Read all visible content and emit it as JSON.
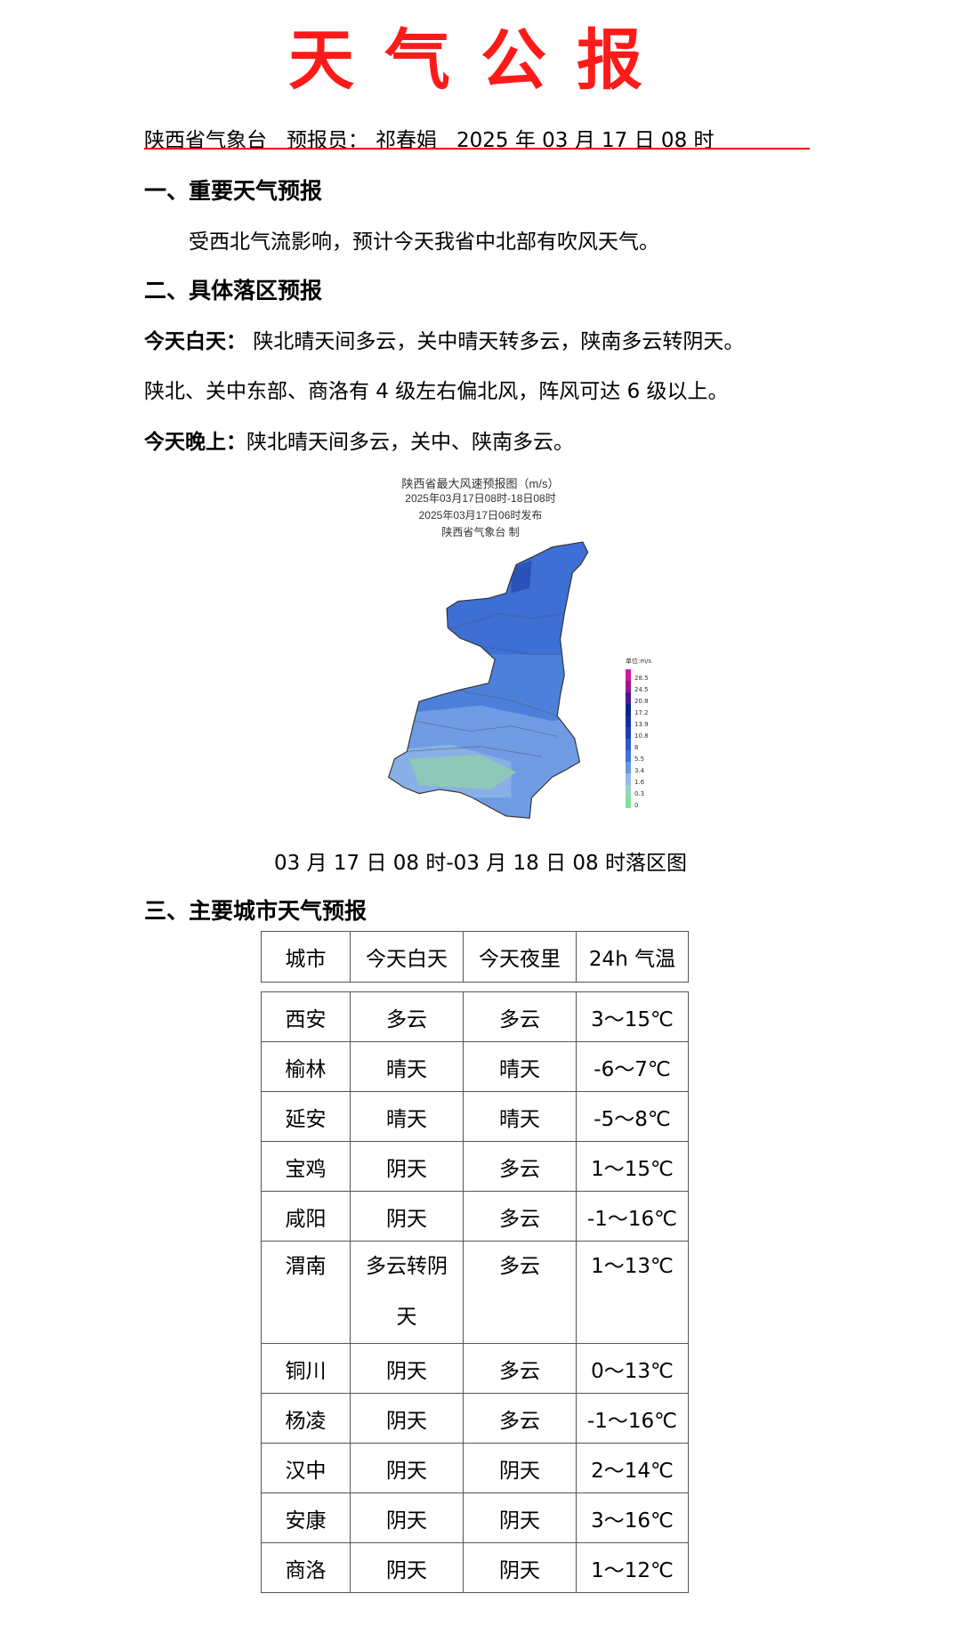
{
  "title": "天气公报",
  "header": {
    "agency": "陕西省气象台",
    "forecaster_label": "预报员：",
    "forecaster": "祁春娟",
    "datetime": "2025 年 03 月 17 日 08 时"
  },
  "section1": {
    "heading": "一、重要天气预报",
    "text": "受西北气流影响，预计今天我省中北部有吹风天气。"
  },
  "section2": {
    "heading": "二、具体落区预报",
    "day_label": "今天白天：",
    "day_text": "陕北晴天间多云，关中晴天转多云，陕南多云转阴天。",
    "wind_text": "陕北、关中东部、商洛有 4 级左右偏北风，阵风可达 6 级以上。",
    "night_label": "今天晚上：",
    "night_text": "陕北晴天间多云，关中、陕南多云。"
  },
  "map": {
    "title": "陕西省最大风速预报图（m/s）",
    "period": "2025年03月17日08时-18日08时",
    "issued": "2025年03月17日06时发布",
    "producer": "陕西省气象台 制",
    "legend_unit": "单位:m/s",
    "legend_values": [
      "28.5",
      "24.5",
      "20.8",
      "17.2",
      "13.9",
      "10.8",
      "8",
      "5.5",
      "3.4",
      "1.6",
      "0.3",
      "0"
    ],
    "legend_colors": [
      "#d01aa8",
      "#9a1a8e",
      "#4a1a8a",
      "#0a2480",
      "#12309a",
      "#1e3eb0",
      "#2c58c8",
      "#3c74d8",
      "#6a98e0",
      "#98b8ea",
      "#9ad4c0",
      "#7ee29a"
    ],
    "caption": "03 月 17 日 08 时-03 月 18 日 08 时落区图"
  },
  "section3": {
    "heading": "三、主要城市天气预报",
    "columns": [
      "城市",
      "今天白天",
      "今天夜里",
      "24h 气温"
    ],
    "rows": [
      [
        "西安",
        "多云",
        "多云",
        "3～15℃"
      ],
      [
        "榆林",
        "晴天",
        "晴天",
        "-6～7℃"
      ],
      [
        "延安",
        "晴天",
        "晴天",
        "-5～8℃"
      ],
      [
        "宝鸡",
        "阴天",
        "多云",
        "1～15℃"
      ],
      [
        "咸阳",
        "阴天",
        "多云",
        "-1～16℃"
      ],
      [
        "渭南",
        "多云转阴天",
        "多云",
        "1～13℃"
      ],
      [
        "铜川",
        "阴天",
        "多云",
        "0～13℃"
      ],
      [
        "杨凌",
        "阴天",
        "多云",
        "-1～16℃"
      ],
      [
        "汉中",
        "阴天",
        "阴天",
        "2～14℃"
      ],
      [
        "安康",
        "阴天",
        "阴天",
        "3～16℃"
      ],
      [
        "商洛",
        "阴天",
        "阴天",
        "1～12℃"
      ]
    ]
  }
}
